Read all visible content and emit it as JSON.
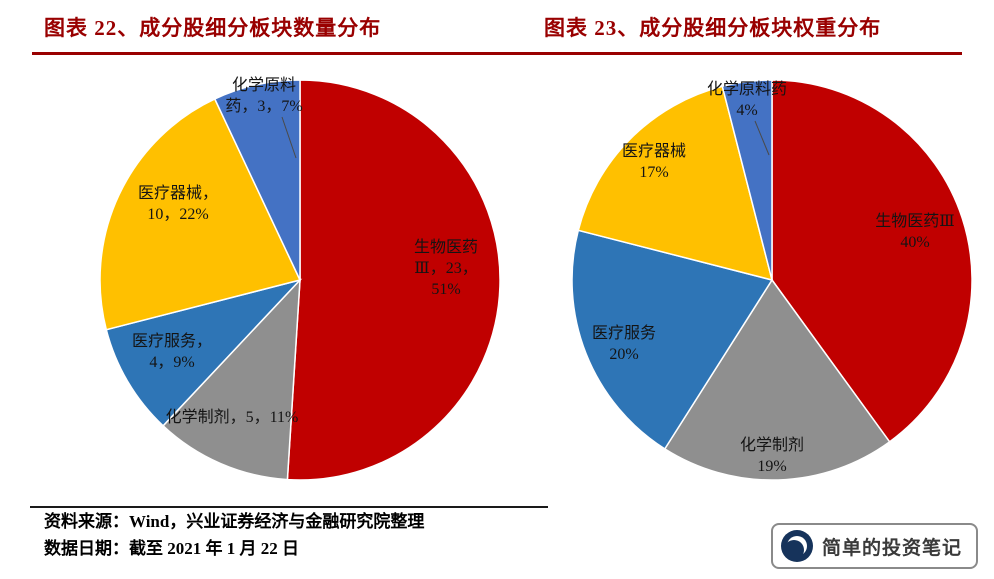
{
  "header": {
    "accent_color": "#990000"
  },
  "chart_data": [
    {
      "type": "pie",
      "title": "图表 22、成分股细分板块数量分布",
      "value_unit": "%",
      "start_angle_deg": -90,
      "direction": "clockwise",
      "legend": "none",
      "slices": [
        {
          "key": "bio",
          "name": "生物医药Ⅲ",
          "count": 23,
          "value": 51,
          "color": "#C00000"
        },
        {
          "key": "chem",
          "name": "化学制剂",
          "count": 5,
          "value": 11,
          "color": "#8F8F8F"
        },
        {
          "key": "service",
          "name": "医疗服务",
          "count": 4,
          "value": 9,
          "color": "#2E75B6"
        },
        {
          "key": "device",
          "name": "医疗器械",
          "count": 10,
          "value": 22,
          "color": "#FFC000"
        },
        {
          "key": "raw",
          "name": "化学原料药",
          "count": 3,
          "value": 7,
          "color": "#4472C4"
        }
      ]
    },
    {
      "type": "pie",
      "title": "图表 23、成分股细分板块权重分布",
      "value_unit": "%",
      "start_angle_deg": -90,
      "direction": "clockwise",
      "legend": "none",
      "slices": [
        {
          "key": "bio",
          "name": "生物医药Ⅲ",
          "value": 40,
          "color": "#C00000"
        },
        {
          "key": "chem",
          "name": "化学制剂",
          "value": 19,
          "color": "#8F8F8F"
        },
        {
          "key": "service",
          "name": "医疗服务",
          "value": 20,
          "color": "#2E75B6"
        },
        {
          "key": "device",
          "name": "医疗器械",
          "value": 17,
          "color": "#FFC000"
        },
        {
          "key": "raw",
          "name": "化学原料药",
          "value": 4,
          "color": "#4472C4"
        }
      ]
    }
  ],
  "pie1": {
    "labels": {
      "raw": {
        "lines": [
          "化学原料",
          "药，3，7%"
        ]
      },
      "device": {
        "lines": [
          "医疗器械，",
          "10，22%"
        ]
      },
      "service": {
        "lines": [
          "医疗服务，",
          "4，9%"
        ]
      },
      "chem": {
        "lines": [
          "化学制剂，5，11%"
        ]
      },
      "bio": {
        "lines": [
          "生物医药",
          "Ⅲ，23，",
          "51%"
        ]
      }
    }
  },
  "pie2": {
    "labels": {
      "raw": {
        "lines": [
          "化学原料药",
          "4%"
        ]
      },
      "device": {
        "lines": [
          "医疗器械",
          "17%"
        ]
      },
      "service": {
        "lines": [
          "医疗服务",
          "20%"
        ]
      },
      "chem": {
        "lines": [
          "化学制剂",
          "19%"
        ]
      },
      "bio": {
        "lines": [
          "生物医药Ⅲ",
          "40%"
        ]
      }
    }
  },
  "footer": {
    "source": "资料来源：Wind，兴业证券经济与金融研究院整理",
    "date": "数据日期：截至 2021 年 1 月 22 日"
  },
  "watermark": {
    "text": "简单的投资笔记"
  }
}
